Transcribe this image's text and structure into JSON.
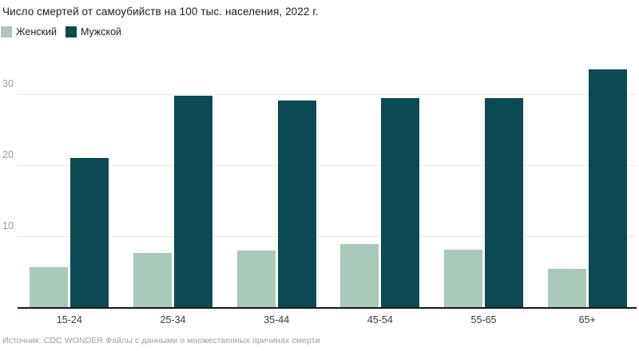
{
  "header": {
    "title": "Число смертей от самоубийств на 100 тыс. населения, 2022 г."
  },
  "legend": {
    "items": [
      {
        "label": "Женский",
        "color": "#a9c9b9"
      },
      {
        "label": "Мужской",
        "color": "#0b4a52"
      }
    ]
  },
  "source": "Источник: CDC WONDER Файлы с данными о множественных причинах смерти",
  "colors": {
    "background": "#ffffff",
    "title": "#1c1c1c",
    "grid": "#e8e8e8",
    "axis_line": "#161616",
    "y_tick_label": "#9a9a9a",
    "x_tick_label": "#3a3a3a",
    "source_text": "#9b9b9b",
    "female_bar": "#a9c9b9",
    "male_bar": "#0b4a52"
  },
  "chart_data": {
    "type": "bar",
    "title": "Число смертей от самоубийств на 100 тыс. населения, 2022 г.",
    "categories": [
      "15-24",
      "25-34",
      "35-44",
      "45-54",
      "55-65",
      "65+"
    ],
    "series": [
      {
        "name": "Женский",
        "color": "#a9c9b9",
        "values": [
          5.7,
          7.7,
          8.1,
          9.0,
          8.2,
          5.5
        ]
      },
      {
        "name": "Мужской",
        "color": "#0b4a52",
        "values": [
          21.1,
          29.9,
          29.2,
          29.5,
          29.5,
          33.6
        ]
      }
    ],
    "xlabel": "",
    "ylabel": "",
    "yticks": [
      10,
      20,
      30
    ],
    "ylim": [
      0,
      35.5
    ],
    "grid": true,
    "legend_position": "top-left",
    "source": "Источник: CDC WONDER Файлы с данными о множественных причинах смерти"
  }
}
